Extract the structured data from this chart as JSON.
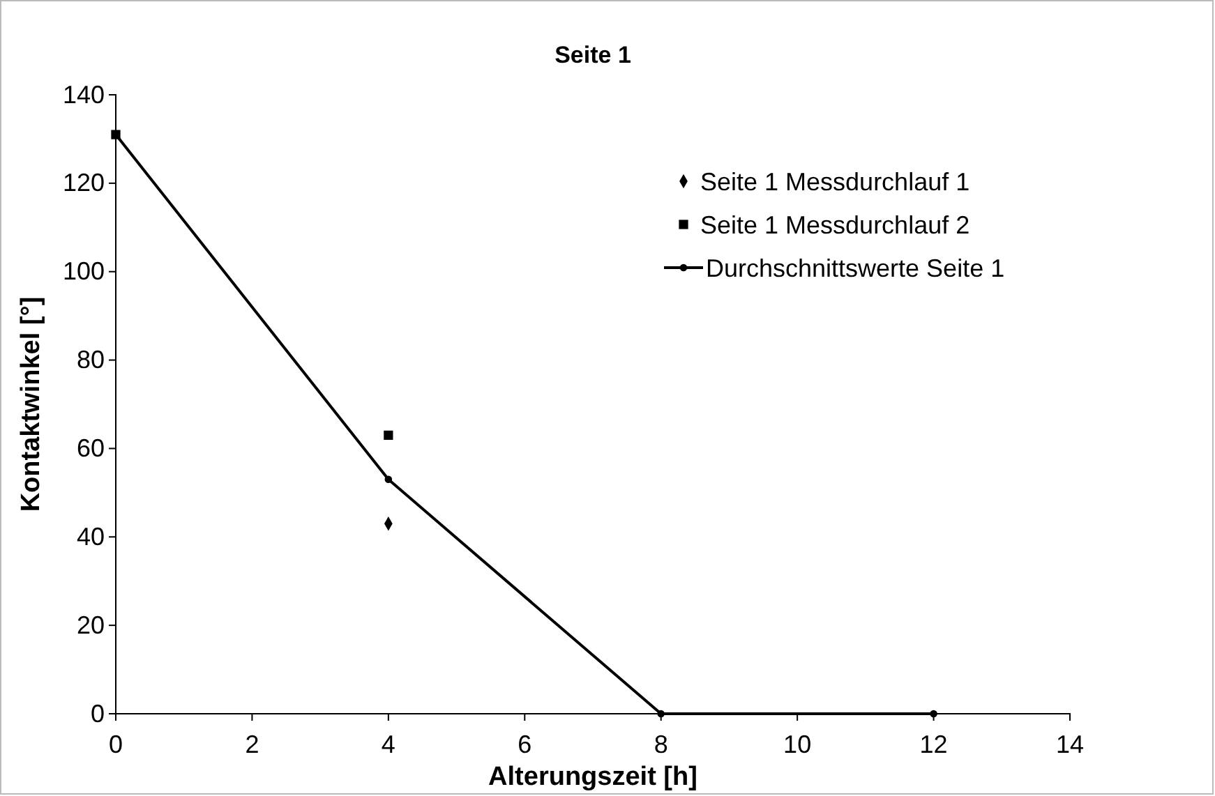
{
  "chart_data": {
    "type": "scatter",
    "title": "Seite 1",
    "xlabel": "Alterungszeit [h]",
    "ylabel": "Kontaktwinkel [°]",
    "xlim": [
      0,
      14
    ],
    "xticks": [
      0,
      2,
      4,
      6,
      8,
      10,
      12,
      14
    ],
    "ylim": [
      0,
      140
    ],
    "yticks": [
      0,
      20,
      40,
      60,
      80,
      100,
      120,
      140
    ],
    "grid": false,
    "legend": "top right",
    "series": [
      {
        "name": "Seite 1 Messdurchlauf 1",
        "color": "#000000",
        "marker": "diamond",
        "x": [
          4
        ],
        "values": [
          43
        ]
      },
      {
        "name": "Seite 1 Messdurchlauf 2",
        "color": "#000000",
        "marker": "square",
        "x": [
          0,
          4
        ],
        "values": [
          131,
          63
        ]
      },
      {
        "name": "Durchschnittswerte Seite 1",
        "color": "#000000",
        "type": "line",
        "marker": "circle",
        "line_style": "solid",
        "x": [
          0,
          4,
          8,
          12
        ],
        "values": [
          131,
          53,
          0,
          0
        ]
      }
    ]
  }
}
